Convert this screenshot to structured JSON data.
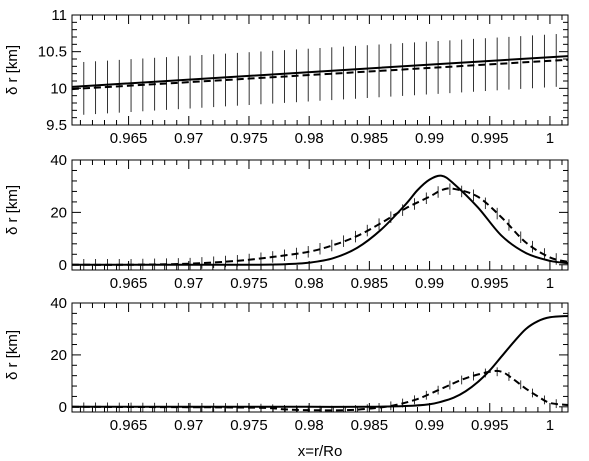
{
  "chart_data": [
    {
      "type": "line",
      "ylabel": "δ r [km]",
      "xlabel": "",
      "xlim": [
        0.9603,
        1.0015
      ],
      "ylim": [
        9.5,
        11.0
      ],
      "x_ticks": [
        "0.965",
        "0.97",
        "0.975",
        "0.98",
        "0.985",
        "0.99",
        "0.995",
        "1"
      ],
      "y_ticks": [
        "9.5",
        "10",
        "10.5",
        "11"
      ],
      "grid": false,
      "series": [
        {
          "style": "solid",
          "x": [
            0.9603,
            1.0015
          ],
          "y": [
            10.02,
            10.44
          ]
        },
        {
          "style": "dashed",
          "x": [
            0.9603,
            1.0015
          ],
          "y": [
            9.99,
            10.39
          ],
          "error": 0.36
        }
      ]
    },
    {
      "type": "line",
      "ylabel": "δ r [km]",
      "xlabel": "",
      "xlim": [
        0.9603,
        1.0015
      ],
      "ylim": [
        -2,
        40
      ],
      "x_ticks": [
        "0.965",
        "0.97",
        "0.975",
        "0.98",
        "0.985",
        "0.99",
        "0.995",
        "1"
      ],
      "y_ticks": [
        "0",
        "20",
        "40"
      ],
      "grid": false,
      "series": [
        {
          "style": "solid",
          "x": [
            0.9603,
            0.97,
            0.975,
            0.978,
            0.98,
            0.982,
            0.984,
            0.986,
            0.988,
            0.989,
            0.99,
            0.991,
            0.992,
            0.994,
            0.996,
            0.998,
            1.0,
            1.0015
          ],
          "y": [
            0,
            0,
            0,
            0.2,
            0.8,
            2.5,
            6.5,
            13.5,
            23,
            28.5,
            32.5,
            34,
            31,
            22,
            11,
            4.5,
            1.5,
            0.6
          ]
        },
        {
          "style": "dashed",
          "x": [
            0.9603,
            0.965,
            0.97,
            0.974,
            0.977,
            0.98,
            0.982,
            0.984,
            0.986,
            0.988,
            0.99,
            0.991,
            0.992,
            0.994,
            0.996,
            0.998,
            1.0,
            1.0015
          ],
          "y": [
            0,
            0,
            0.4,
            1.5,
            3,
            5,
            7.5,
            11,
            16,
            21.5,
            26,
            28.5,
            29,
            26,
            18,
            8.5,
            2.8,
            1.1
          ],
          "error": 2.2
        }
      ]
    },
    {
      "type": "line",
      "ylabel": "δ r [km]",
      "xlabel": "x=r/Ro",
      "xlim": [
        0.9603,
        1.0015
      ],
      "ylim": [
        -2,
        40
      ],
      "x_ticks": [
        "0.965",
        "0.97",
        "0.975",
        "0.98",
        "0.985",
        "0.99",
        "0.995",
        "1"
      ],
      "y_ticks": [
        "0",
        "20",
        "40"
      ],
      "grid": false,
      "series": [
        {
          "style": "solid",
          "x": [
            0.9603,
            0.975,
            0.98,
            0.985,
            0.988,
            0.99,
            0.991,
            0.992,
            0.993,
            0.994,
            0.995,
            0.996,
            0.997,
            0.998,
            0.999,
            1.0,
            1.0015
          ],
          "y": [
            0,
            0,
            0,
            0,
            0.3,
            1,
            2,
            3.5,
            6,
            9.5,
            14,
            19.5,
            25,
            30,
            33,
            34.5,
            35
          ]
        },
        {
          "style": "dashed",
          "x": [
            0.9603,
            0.975,
            0.978,
            0.98,
            0.983,
            0.985,
            0.987,
            0.989,
            0.991,
            0.993,
            0.995,
            0.996,
            0.997,
            0.998,
            0.999,
            1.0,
            1.0015
          ],
          "y": [
            0,
            -0.3,
            -1,
            -1.3,
            -1.3,
            -0.7,
            0.5,
            3,
            7,
            11,
            13.5,
            13.5,
            10.5,
            7,
            4,
            1.5,
            0.7
          ],
          "error": 1.7
        }
      ]
    }
  ]
}
